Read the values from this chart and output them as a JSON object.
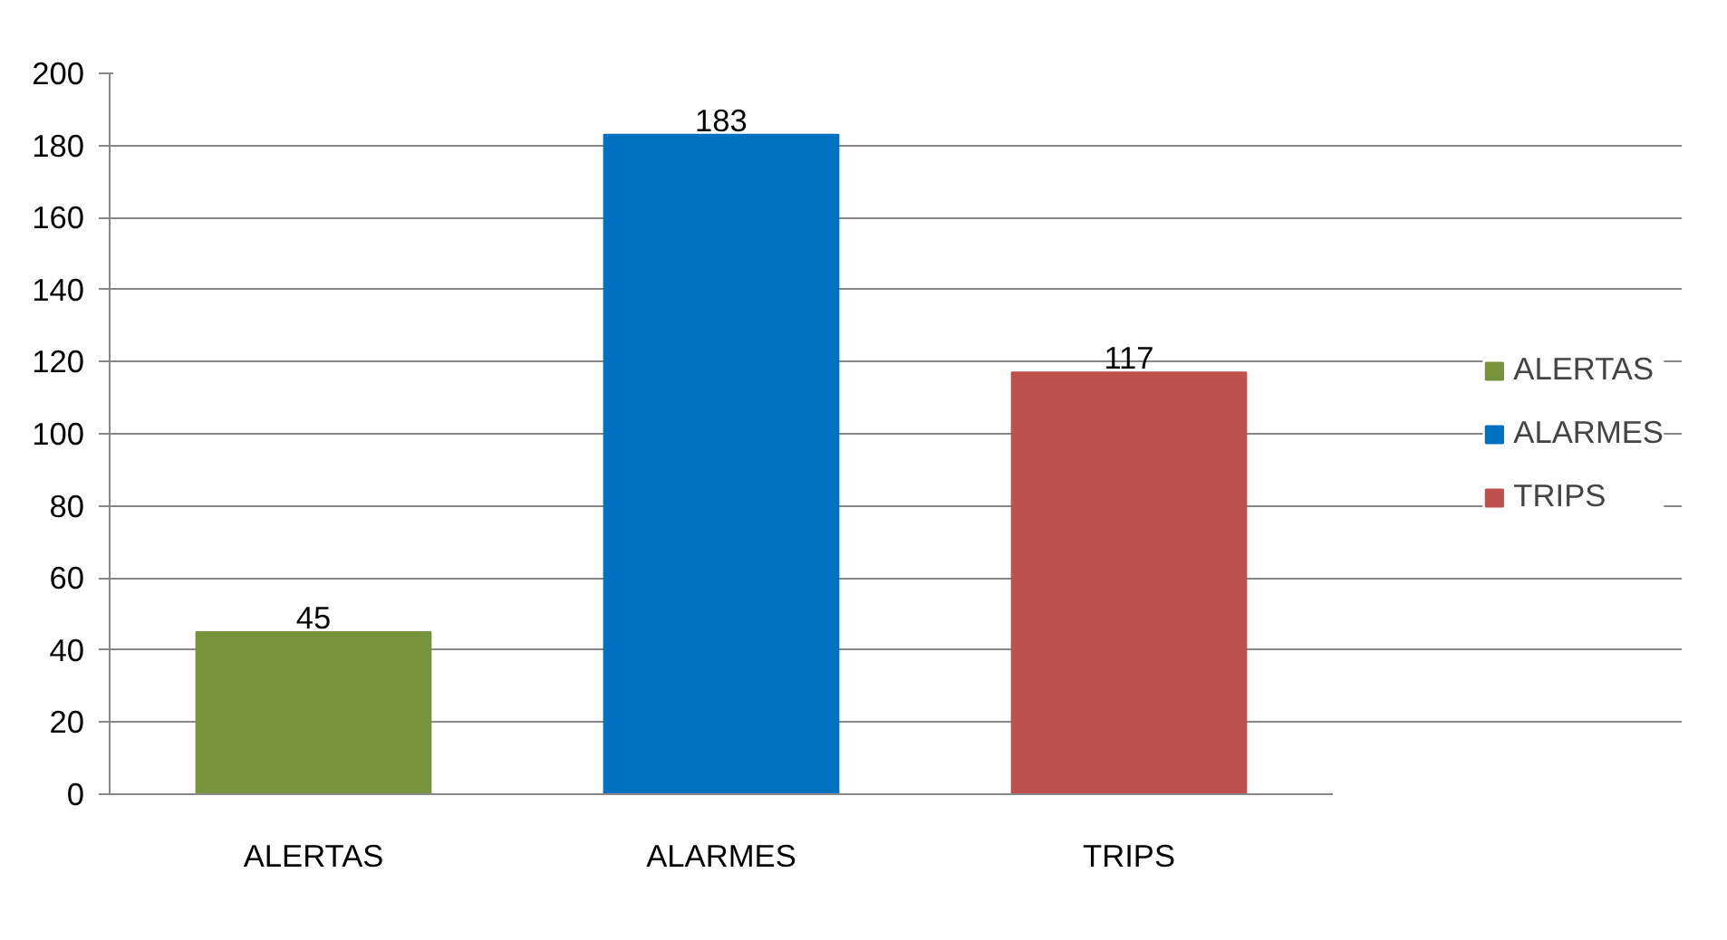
{
  "chart_data": {
    "type": "bar",
    "categories": [
      "ALERTAS",
      "ALARMES",
      "TRIPS"
    ],
    "series": [
      {
        "name": "ALERTAS",
        "color": "#77933c",
        "values": [
          45,
          null,
          null
        ]
      },
      {
        "name": "ALARMES",
        "color": "#0070c0",
        "values": [
          null,
          183,
          null
        ]
      },
      {
        "name": "TRIPS",
        "color": "#c0504d",
        "values": [
          null,
          null,
          117
        ]
      }
    ],
    "ylim": [
      0,
      200
    ],
    "yticks": [
      0,
      20,
      40,
      60,
      80,
      100,
      120,
      140,
      160,
      180,
      200
    ],
    "grid": "y",
    "legend": "right",
    "data_labels": true
  }
}
